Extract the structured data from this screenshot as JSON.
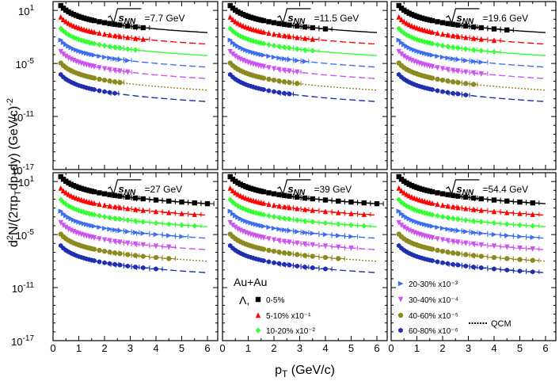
{
  "chart_data": {
    "type": "scatter",
    "y_scale": "log",
    "xlabel": "p_T (GeV/c)",
    "ylabel": "d²N/(2πp_T dp_T dy) (GeV/c)⁻²",
    "xlim": [
      0,
      6.4
    ],
    "ylim_exponent": [
      -17,
      2
    ],
    "x_ticks": [
      0,
      1,
      2,
      3,
      4,
      5,
      6
    ],
    "y_ticks": [
      {
        "exp": 1,
        "label": "10",
        "sup": "1"
      },
      {
        "exp": -5,
        "label": "10",
        "sup": "-5"
      },
      {
        "exp": -11,
        "label": "10",
        "sup": "-11"
      },
      {
        "exp": -17,
        "label": "10",
        "sup": "-17"
      }
    ],
    "legend": {
      "system": "Au+Au",
      "particle": "Λ,",
      "model": "QCM",
      "centralities": [
        {
          "label": "0-5%",
          "marker": "square",
          "color": "#000000"
        },
        {
          "label": "5-10% x10⁻¹",
          "marker": "triangle-up",
          "color": "#ff0000"
        },
        {
          "label": "10-20% x10⁻²",
          "marker": "diamond",
          "color": "#33ff33"
        },
        {
          "label": "20-30% x10⁻³",
          "marker": "triangle-right",
          "color": "#3b6ff0"
        },
        {
          "label": "30-40% x10⁻⁴",
          "marker": "triangle-down",
          "color": "#cc55ee"
        },
        {
          "label": "40-60% x10⁻⁵",
          "marker": "circle",
          "color": "#8a8a1e"
        },
        {
          "label": "60-80% x10⁻⁶",
          "marker": "hexagon",
          "color": "#1e2fb0"
        }
      ]
    },
    "fit_curve": {
      "a_start": 1.55,
      "slope": -2.35,
      "a_step": -1.3
    },
    "panels": [
      {
        "energy_label": "√s_NN",
        "energy_value": "=7.7 GeV",
        "y_at_0_3": [
          1.5,
          0.2,
          -1.1,
          -2.4,
          -3.7,
          -5.0,
          -6.3
        ],
        "x_max": [
          3.9,
          3.7,
          3.3,
          3.1,
          2.9,
          2.7,
          2.5
        ]
      },
      {
        "energy_label": "√s_NN",
        "energy_value": "=11.5 GeV",
        "y_at_0_3": [
          1.5,
          0.2,
          -1.1,
          -2.4,
          -3.7,
          -5.0,
          -6.3
        ],
        "x_max": [
          4.1,
          3.9,
          3.5,
          3.3,
          3.1,
          3.0,
          2.7
        ]
      },
      {
        "energy_label": "√s_NN",
        "energy_value": "=19.6 GeV",
        "y_at_0_3": [
          1.5,
          0.2,
          -1.1,
          -2.4,
          -3.7,
          -5.0,
          -6.3
        ],
        "x_max": [
          4.5,
          4.3,
          4.0,
          3.8,
          3.6,
          3.4,
          3.1
        ]
      },
      {
        "energy_label": "√s_NN",
        "energy_value": "=27 GeV",
        "y_at_0_3": [
          1.5,
          0.2,
          -1.1,
          -2.4,
          -3.7,
          -5.0,
          -6.3
        ],
        "x_max": [
          6.0,
          5.7,
          5.5,
          5.2,
          4.9,
          4.7,
          4.4
        ]
      },
      {
        "energy_label": "√s_NN",
        "energy_value": "=39 GeV",
        "y_at_0_3": [
          1.5,
          0.2,
          -1.1,
          -2.4,
          -3.7,
          -5.0,
          -6.3
        ],
        "x_max": [
          6.0,
          5.7,
          5.5,
          5.2,
          5.0,
          4.7,
          4.4
        ]
      },
      {
        "energy_label": "√s_NN",
        "energy_value": "=54.4 GeV",
        "y_at_0_3": [
          1.5,
          0.2,
          -1.1,
          -2.4,
          -3.7,
          -5.0,
          -6.3
        ],
        "x_max": [
          5.8,
          5.8,
          5.8,
          5.8,
          5.8,
          5.8,
          5.8
        ]
      }
    ]
  }
}
